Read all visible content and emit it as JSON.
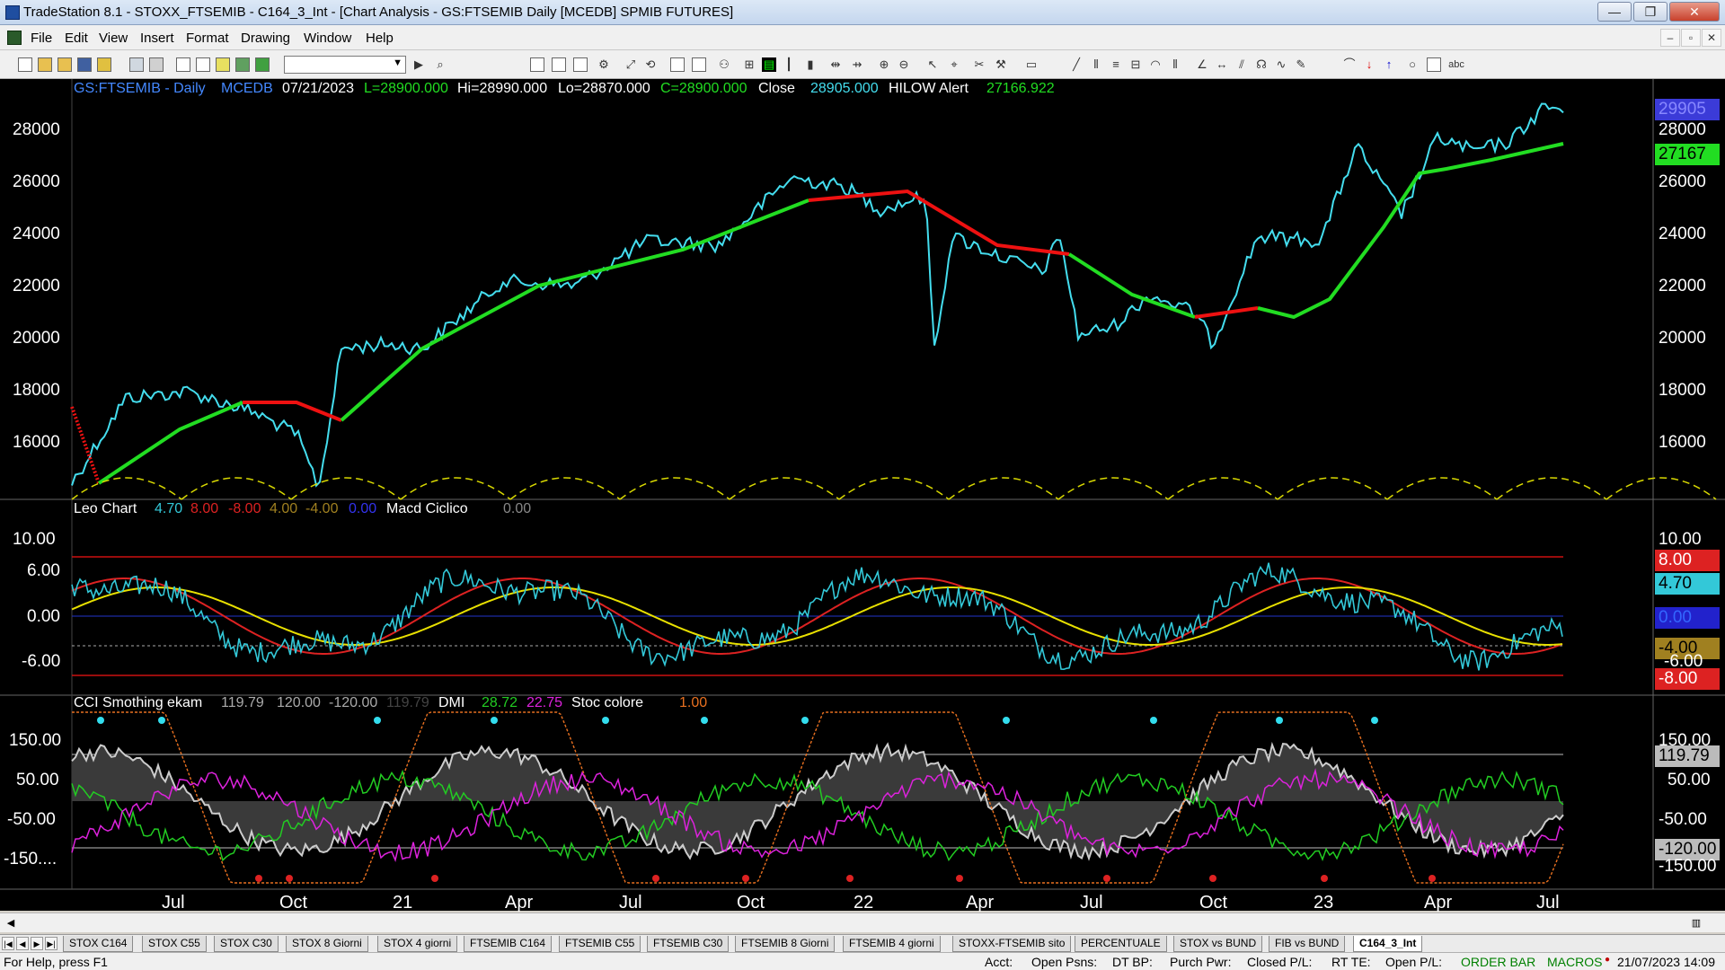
{
  "window": {
    "title": "TradeStation 8.1 - STOXX_FTSEMIB - C164_3_Int - [Chart Analysis - GS:FTSEMIB  Daily  [MCEDB] SPMIB FUTURES]",
    "minimize": "—",
    "restore": "❐",
    "close": "✕"
  },
  "menu": [
    "File",
    "Edit",
    "View",
    "Insert",
    "Format",
    "Drawing",
    "Window",
    "Help"
  ],
  "mdi": {
    "minimize": "–",
    "restore": "▫",
    "close": "✕"
  },
  "chart_header": {
    "symbol": "GS:FTSEMIB - Daily",
    "exchange": "MCEDB",
    "date": "07/21/2023",
    "low_open": "L=28900.000",
    "hi": "Hi=28990.000",
    "lo": "Lo=28870.000",
    "close_c": "C=28900.000",
    "close_label": "Close",
    "close_value": "28905.000",
    "hilow_label": "HILOW Alert",
    "hilow_value": "27166.922"
  },
  "panel2_header": {
    "name": "Leo Chart",
    "v1": "4.70",
    "v2": "8.00",
    "v3": "-8.00",
    "v4": "4.00",
    "v5": "-4.00",
    "v6": "0.00",
    "macd_label": "Macd Ciclico",
    "macd_value": "0.00"
  },
  "panel3_header": {
    "name": "CCI Smothing ekam",
    "v1": "119.79",
    "v2": "120.00",
    "v3": "-120.00",
    "v4": "119.79",
    "dmi_label": "DMI",
    "dmi_plus": "28.72",
    "dmi_minus": "22.75",
    "stoc_label": "Stoc colore",
    "stoc_value": "1.00"
  },
  "price_axis": {
    "labels": [
      "28000",
      "26000",
      "24000",
      "22000",
      "20000",
      "18000",
      "16000"
    ],
    "top_cut": "29905",
    "last_tag": "27167"
  },
  "osc_axis": {
    "labels": [
      "10.00",
      "6.00",
      "0.00",
      "-6.00"
    ],
    "tag_8": "8.00",
    "tag_470": "4.70",
    "tag_0": "0.00",
    "tag_m4": "-4.00",
    "tag_m6": "-6.00",
    "tag_m8": "-8.00"
  },
  "cci_axis": {
    "labels": [
      "150.00",
      "50.00",
      "-50.00",
      "-150...."
    ],
    "tag_119": "119.79",
    "tag_m120": "-120.00",
    "tag_m150": "-150.00",
    "tag_150": "150.00"
  },
  "x_axis": [
    "Jul",
    "Oct",
    "21",
    "Apr",
    "Jul",
    "Oct",
    "22",
    "Apr",
    "Jul",
    "Oct",
    "23",
    "Apr",
    "Jul"
  ],
  "tabs": [
    "STOX C164",
    "STOX C55",
    "STOX  C30",
    "STOX  8 Giorni",
    "STOX 4 giorni",
    "FTSEMIB C164",
    "FTSEMIB C55",
    "FTSEMIB C30",
    "FTSEMIB  8 Giorni",
    "FTSEMIB  4 giorni",
    "STOXX-FTSEMIB sito",
    "PERCENTUALE",
    "STOX vs BUND",
    "FIB vs BUND",
    "C164_3_Int"
  ],
  "status": {
    "help": "For Help, press F1",
    "acct": "Acct:",
    "open_psns": "Open Psns:",
    "dt_bp": "DT BP:",
    "purch_pwr": "Purch Pwr:",
    "closed_pl": "Closed P/L:",
    "rt_te": "RT TE:",
    "open_pl": "Open P/L:",
    "order_bar": "ORDER BAR",
    "macros": "MACROS",
    "datetime": "21/07/2023 14:09"
  },
  "colors": {
    "price": "#44ddee",
    "avg_up": "#22dd22",
    "avg_down": "#ee1111",
    "cycle": "#d8d800",
    "osc_cyan": "#33c8d8",
    "osc_red": "#dd2222",
    "osc_yellow": "#e8e000",
    "dmi_plus": "#22cc22",
    "dmi_minus": "#dd22dd",
    "stoc": "#e87020",
    "cci_fill": "#888888"
  }
}
